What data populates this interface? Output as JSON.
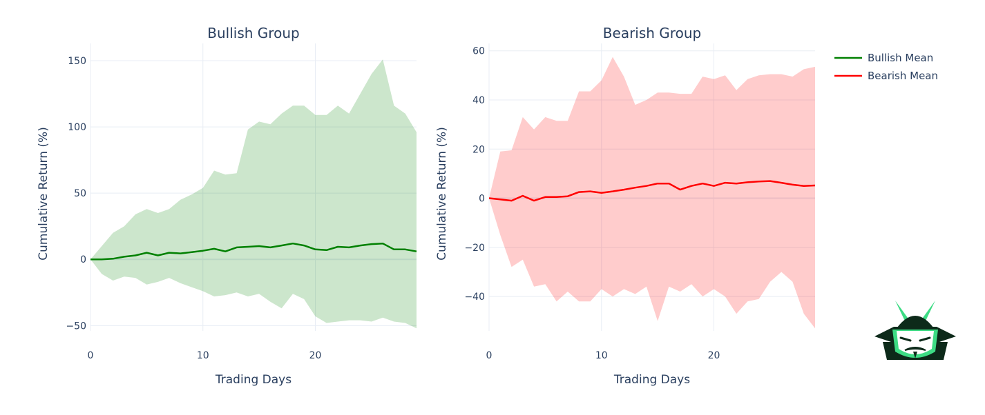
{
  "chart_data": [
    {
      "type": "line",
      "title": "Bullish Group",
      "xlabel": "Trading Days",
      "ylabel": "Cumulative Return (%)",
      "xlim": [
        0,
        29
      ],
      "ylim": [
        -54,
        163
      ],
      "xticks": [
        0,
        10,
        20
      ],
      "yticks": [
        -50,
        0,
        50,
        100,
        150
      ],
      "mean_series": {
        "name": "Bullish Mean",
        "color": "#008000",
        "x": [
          0,
          1,
          2,
          3,
          4,
          5,
          6,
          7,
          8,
          9,
          10,
          11,
          12,
          13,
          14,
          15,
          16,
          17,
          18,
          19,
          20,
          21,
          22,
          23,
          24,
          25,
          26,
          27,
          28,
          29
        ],
        "values": [
          0,
          0,
          0.5,
          2,
          3,
          5,
          3,
          5,
          4.5,
          5.5,
          6.5,
          8,
          6,
          9,
          9.5,
          10,
          9,
          10.5,
          12,
          10.5,
          7.5,
          7,
          9.5,
          9,
          10.5,
          11.5,
          12,
          7.5,
          7.5,
          6
        ]
      },
      "band": {
        "fill_color": "rgba(0,128,0,0.2)",
        "upper": [
          0,
          10,
          20,
          25,
          34,
          38,
          35,
          38,
          45,
          49,
          54,
          67,
          64,
          65,
          98,
          104,
          102,
          110,
          116,
          116,
          109,
          109,
          116,
          110,
          125,
          140,
          151,
          116,
          110,
          96
        ],
        "lower": [
          0,
          -11,
          -16,
          -13,
          -14,
          -19,
          -17,
          -14,
          -18,
          -21,
          -24,
          -28,
          -27,
          -25,
          -28,
          -26,
          -32,
          -37,
          -26,
          -30,
          -43,
          -48,
          -47,
          -46,
          -46,
          -47,
          -44,
          -47,
          -48,
          -52
        ]
      }
    },
    {
      "type": "line",
      "title": "Bearish Group",
      "xlabel": "Trading Days",
      "ylabel": "Cumulative Return (%)",
      "xlim": [
        0,
        29
      ],
      "ylim": [
        -54,
        63
      ],
      "xticks": [
        0,
        10,
        20
      ],
      "yticks": [
        -40,
        -20,
        0,
        20,
        40,
        60
      ],
      "mean_series": {
        "name": "Bearish Mean",
        "color": "#ff0000",
        "x": [
          0,
          1,
          2,
          3,
          4,
          5,
          6,
          7,
          8,
          9,
          10,
          11,
          12,
          13,
          14,
          15,
          16,
          17,
          18,
          19,
          20,
          21,
          22,
          23,
          24,
          25,
          26,
          27,
          28,
          29
        ],
        "values": [
          0,
          -0.5,
          -1,
          1,
          -1,
          0.5,
          0.5,
          0.8,
          2.5,
          2.8,
          2.2,
          2.8,
          3.5,
          4.3,
          5,
          6,
          6,
          3.5,
          5,
          6,
          5,
          6.3,
          6,
          6.5,
          6.8,
          7,
          6.3,
          5.5,
          5,
          5.2
        ]
      },
      "band": {
        "fill_color": "rgba(255,0,0,0.2)",
        "upper": [
          0,
          19,
          19.5,
          33,
          28,
          33,
          31.5,
          31.5,
          43.5,
          43.5,
          48,
          57.5,
          49.5,
          38,
          40,
          43,
          43,
          42.5,
          42.5,
          49.5,
          48.5,
          50,
          44,
          48.5,
          50,
          50.5,
          50.5,
          49.5,
          52.5,
          53.5
        ],
        "lower": [
          0,
          -15,
          -28,
          -25,
          -36,
          -35,
          -42,
          -38,
          -42,
          -42,
          -37,
          -40,
          -37,
          -39,
          -36,
          -50,
          -36,
          -38,
          -35,
          -40,
          -37,
          -40,
          -47,
          -42,
          -41,
          -34,
          -30,
          -34,
          -47,
          -53
        ]
      }
    }
  ],
  "legend": {
    "items": [
      {
        "label": "Bullish Mean",
        "color": "#008000"
      },
      {
        "label": "Bearish Mean",
        "color": "#ff0000"
      }
    ]
  },
  "logo": {
    "icon": "samurai-helmet-logo",
    "colors": {
      "dark": "#0d2a1a",
      "accent": "#3ddc84"
    }
  }
}
